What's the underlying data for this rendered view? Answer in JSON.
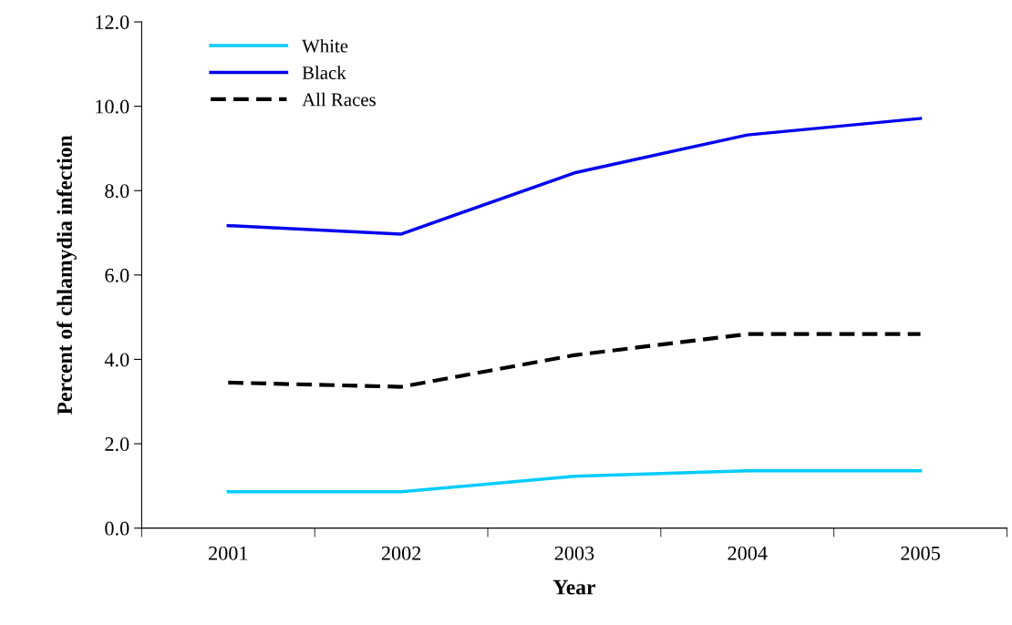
{
  "chart_data": {
    "type": "line",
    "xlabel": "Year",
    "ylabel": "Percent of chlamydia infection",
    "categories": [
      "2001",
      "2002",
      "2003",
      "2004",
      "2005"
    ],
    "series": [
      {
        "name": "White",
        "color": "#00ccff",
        "line_style": "solid",
        "values": [
          0.86,
          0.86,
          1.23,
          1.36,
          1.36
        ]
      },
      {
        "name": "Black",
        "color": "#0000ee",
        "line_style": "solid",
        "values": [
          7.17,
          6.97,
          8.42,
          9.32,
          9.71
        ]
      },
      {
        "name": "All Races",
        "color": "#000000",
        "line_style": "dashed",
        "values": [
          3.45,
          3.35,
          4.1,
          4.6,
          4.6
        ]
      }
    ],
    "ylim": [
      0,
      12
    ],
    "yticks": [
      {
        "value": 0,
        "label": "0.0"
      },
      {
        "value": 2,
        "label": "2.0"
      },
      {
        "value": 4,
        "label": "4.0"
      },
      {
        "value": 6,
        "label": "6.0"
      },
      {
        "value": 8,
        "label": "8.0"
      },
      {
        "value": 10,
        "label": "10.0"
      },
      {
        "value": 12,
        "label": "12.0"
      }
    ],
    "grid": false,
    "legend": "top left"
  }
}
